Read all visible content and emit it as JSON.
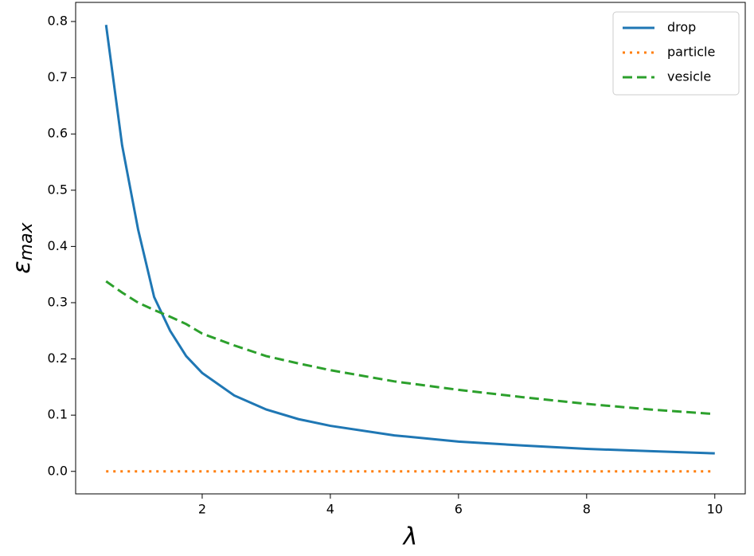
{
  "chart_data": {
    "type": "line",
    "xlabel": "λ",
    "ylabel": "εmax",
    "x": [
      0.5,
      0.75,
      1,
      1.25,
      1.5,
      1.75,
      2,
      2.5,
      3,
      3.5,
      4,
      5,
      6,
      7,
      8,
      9,
      10
    ],
    "series": [
      {
        "name": "drop",
        "color": "#1f77b4",
        "style": "solid",
        "values": [
          0.794,
          0.58,
          0.43,
          0.31,
          0.25,
          0.205,
          0.175,
          0.135,
          0.11,
          0.093,
          0.081,
          0.064,
          0.053,
          0.046,
          0.04,
          0.036,
          0.032
        ]
      },
      {
        "name": "particle",
        "color": "#ff7f0e",
        "style": "dotted",
        "values": [
          0,
          0,
          0,
          0,
          0,
          0,
          0,
          0,
          0,
          0,
          0,
          0,
          0,
          0,
          0,
          0,
          0
        ]
      },
      {
        "name": "vesicle",
        "color": "#2ca02c",
        "style": "dashed",
        "values": [
          0.338,
          0.318,
          0.3,
          0.287,
          0.275,
          0.262,
          0.245,
          0.224,
          0.205,
          0.192,
          0.18,
          0.16,
          0.145,
          0.132,
          0.12,
          0.11,
          0.102
        ]
      }
    ],
    "xlim": [
      0.025,
      10.475
    ],
    "xticks": [
      2,
      4,
      6,
      8,
      10
    ],
    "ylim": [
      -0.04,
      0.834
    ],
    "yticks": [
      {
        "value": 0,
        "label": "0.0"
      },
      0.1,
      0.2,
      0.3,
      0.4,
      0.5,
      0.6,
      0.7,
      0.8
    ],
    "legend": "upper right",
    "grid": false
  }
}
